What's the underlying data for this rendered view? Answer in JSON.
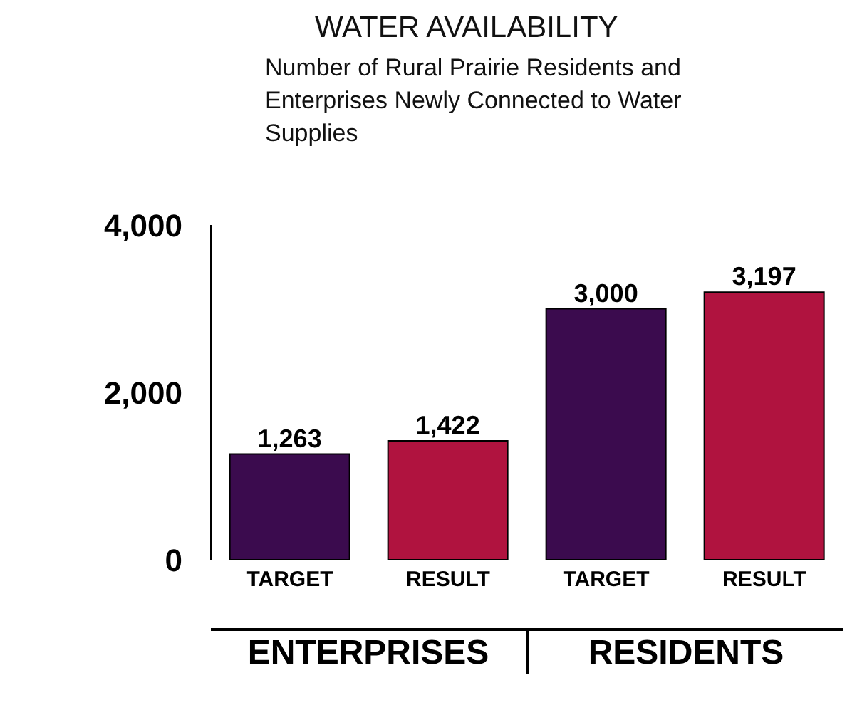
{
  "chart_data": {
    "type": "bar",
    "title": "WATER AVAILABILITY",
    "subtitle": "Number of Rural Prairie Residents and Enterprises Newly Connected to Water Supplies",
    "categories": [
      "TARGET",
      "RESULT",
      "TARGET",
      "RESULT"
    ],
    "values": [
      1263,
      1422,
      3000,
      3197
    ],
    "value_labels": [
      "1,263",
      "1,422",
      "3,000",
      "3,197"
    ],
    "colors": [
      "#3b0b4e",
      "#b0133f",
      "#3b0b4e",
      "#b0133f"
    ],
    "ylim": [
      0,
      4000
    ],
    "yticks": [
      0,
      {
        "value": 2000,
        "label": "2,000"
      },
      {
        "value": 4000,
        "label": "4,000"
      }
    ],
    "annotations": [
      "ENTERPRISES",
      "RESIDENTS"
    ]
  }
}
